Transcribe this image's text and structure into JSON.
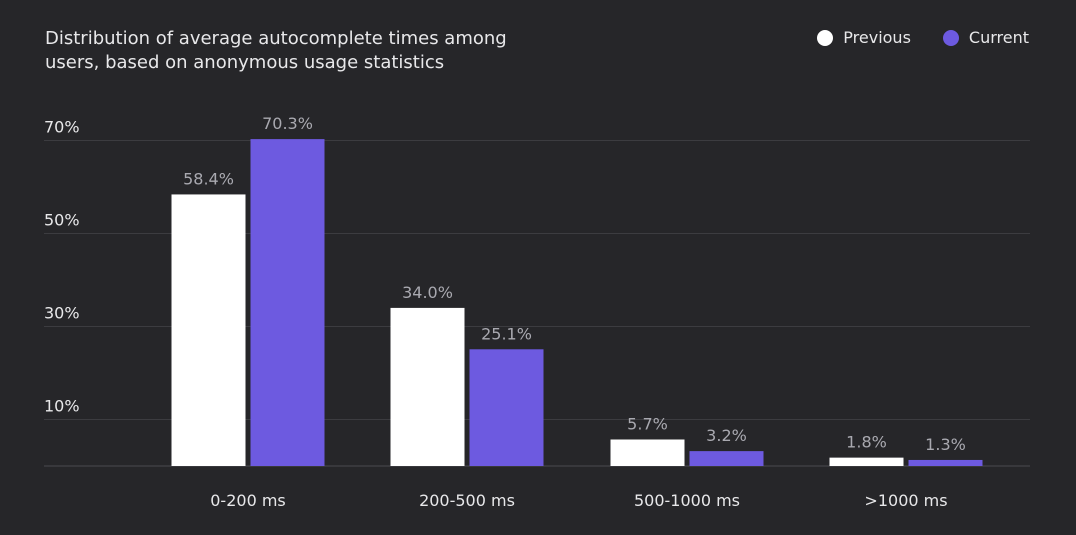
{
  "chart_data": {
    "type": "bar",
    "title": "Distribution of average autocomplete times among users, based on anonymous usage statistics",
    "categories": [
      "0-200 ms",
      "200-500 ms",
      "500-1000 ms",
      ">1000 ms"
    ],
    "series": [
      {
        "name": "Previous",
        "color": "#ffffff",
        "values": [
          58.4,
          34.0,
          5.7,
          1.8
        ],
        "labels": [
          "58.4%",
          "34.0%",
          "5.7%",
          "1.8%"
        ]
      },
      {
        "name": "Current",
        "color": "#6d5ae0",
        "values": [
          70.3,
          25.1,
          3.2,
          1.3
        ],
        "labels": [
          "70.3%",
          "25.1%",
          "3.2%",
          "1.3%"
        ]
      }
    ],
    "yticks": [
      10,
      30,
      50,
      70
    ],
    "ytick_labels": [
      "10%",
      "30%",
      "50%",
      "70%"
    ],
    "ylim": [
      0,
      70
    ],
    "xlabel": "",
    "ylabel": "",
    "grid": true,
    "legend_position": "top-right"
  },
  "colors": {
    "background": "#262629",
    "gridline": "#3c3c40",
    "axis": "#4a4a4f"
  }
}
